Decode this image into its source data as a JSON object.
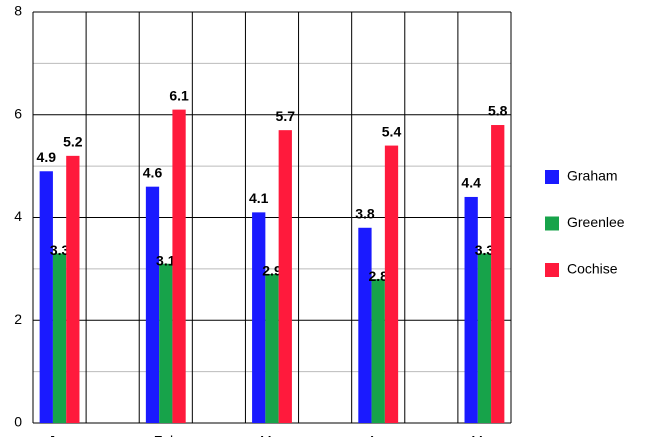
{
  "chart_data": {
    "type": "bar",
    "categories": [
      "Jan",
      "Feb",
      "Mar",
      "Apr",
      "May"
    ],
    "series": [
      {
        "name": "Graham",
        "color": "#1a1aff",
        "values": [
          4.9,
          4.6,
          4.1,
          3.8,
          4.4
        ]
      },
      {
        "name": "Greenlee",
        "color": "#17a34a",
        "values": [
          3.3,
          3.1,
          2.9,
          2.8,
          3.3
        ]
      },
      {
        "name": "Cochise",
        "color": "#ff1a3c",
        "values": [
          5.2,
          6.1,
          5.7,
          5.4,
          5.8
        ]
      }
    ],
    "ylim": [
      0,
      8
    ],
    "yticks": [
      0,
      2,
      4,
      6,
      8
    ],
    "grid": true,
    "legend": "right"
  }
}
